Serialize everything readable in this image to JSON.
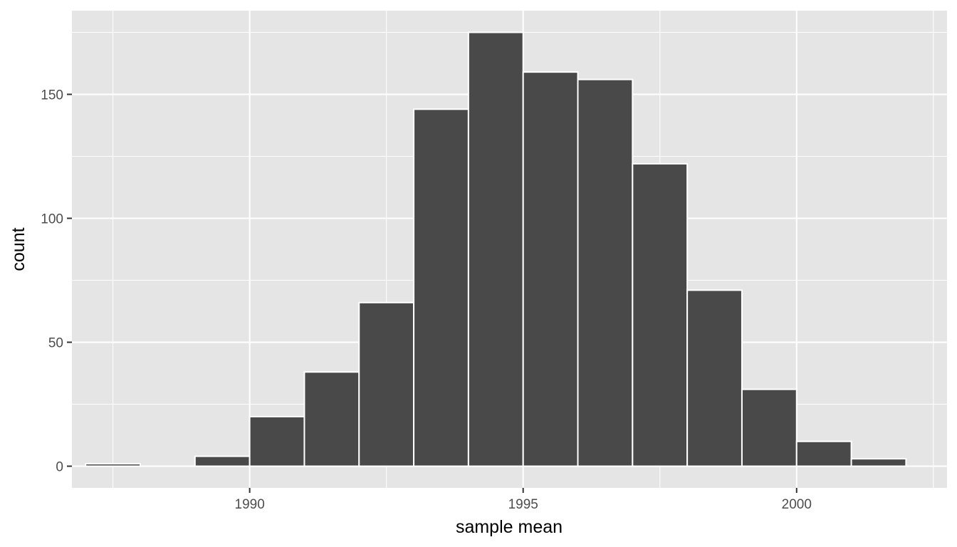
{
  "chart_data": {
    "type": "bar",
    "title": "",
    "xlabel": "sample mean",
    "ylabel": "count",
    "bin_width": 1,
    "bins": [
      {
        "center": 1987.5,
        "count": 1
      },
      {
        "center": 1988.5,
        "count": 0
      },
      {
        "center": 1989.5,
        "count": 4
      },
      {
        "center": 1990.5,
        "count": 20
      },
      {
        "center": 1991.5,
        "count": 38
      },
      {
        "center": 1992.5,
        "count": 66
      },
      {
        "center": 1993.5,
        "count": 144
      },
      {
        "center": 1994.5,
        "count": 175
      },
      {
        "center": 1995.5,
        "count": 159
      },
      {
        "center": 1996.5,
        "count": 156
      },
      {
        "center": 1997.5,
        "count": 122
      },
      {
        "center": 1998.5,
        "count": 71
      },
      {
        "center": 1999.5,
        "count": 31
      },
      {
        "center": 2000.5,
        "count": 10
      },
      {
        "center": 2001.5,
        "count": 3
      }
    ],
    "xlim": [
      1986.75,
      2002.75
    ],
    "ylim": [
      -8.75,
      183.75
    ],
    "x_ticks": [
      1990,
      1995,
      2000
    ],
    "x_tick_labels": [
      "1990",
      "1995",
      "2000"
    ],
    "x_minor_ticks": [
      1987.5,
      1992.5,
      1997.5,
      2002.5
    ],
    "y_ticks": [
      0,
      50,
      100,
      150
    ],
    "y_tick_labels": [
      "0",
      "50",
      "100",
      "150"
    ],
    "y_minor_ticks": [
      25,
      75,
      125,
      175
    ],
    "grid": true,
    "legend": "none",
    "colors": {
      "panel": "#e5e5e5",
      "bar_fill": "#494949",
      "bar_outline": "#ffffff",
      "grid": "#ffffff"
    }
  }
}
